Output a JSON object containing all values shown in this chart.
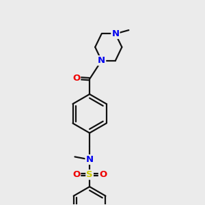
{
  "bg_color": "#ebebeb",
  "atom_color_N": "#0000ee",
  "atom_color_O": "#ee0000",
  "atom_color_S": "#cccc00",
  "bond_color": "#111111",
  "bond_width": 1.6,
  "dbo": 0.055,
  "font_size_atom": 9.5,
  "xlim": [
    2.0,
    9.0
  ],
  "ylim": [
    0.2,
    11.2
  ]
}
